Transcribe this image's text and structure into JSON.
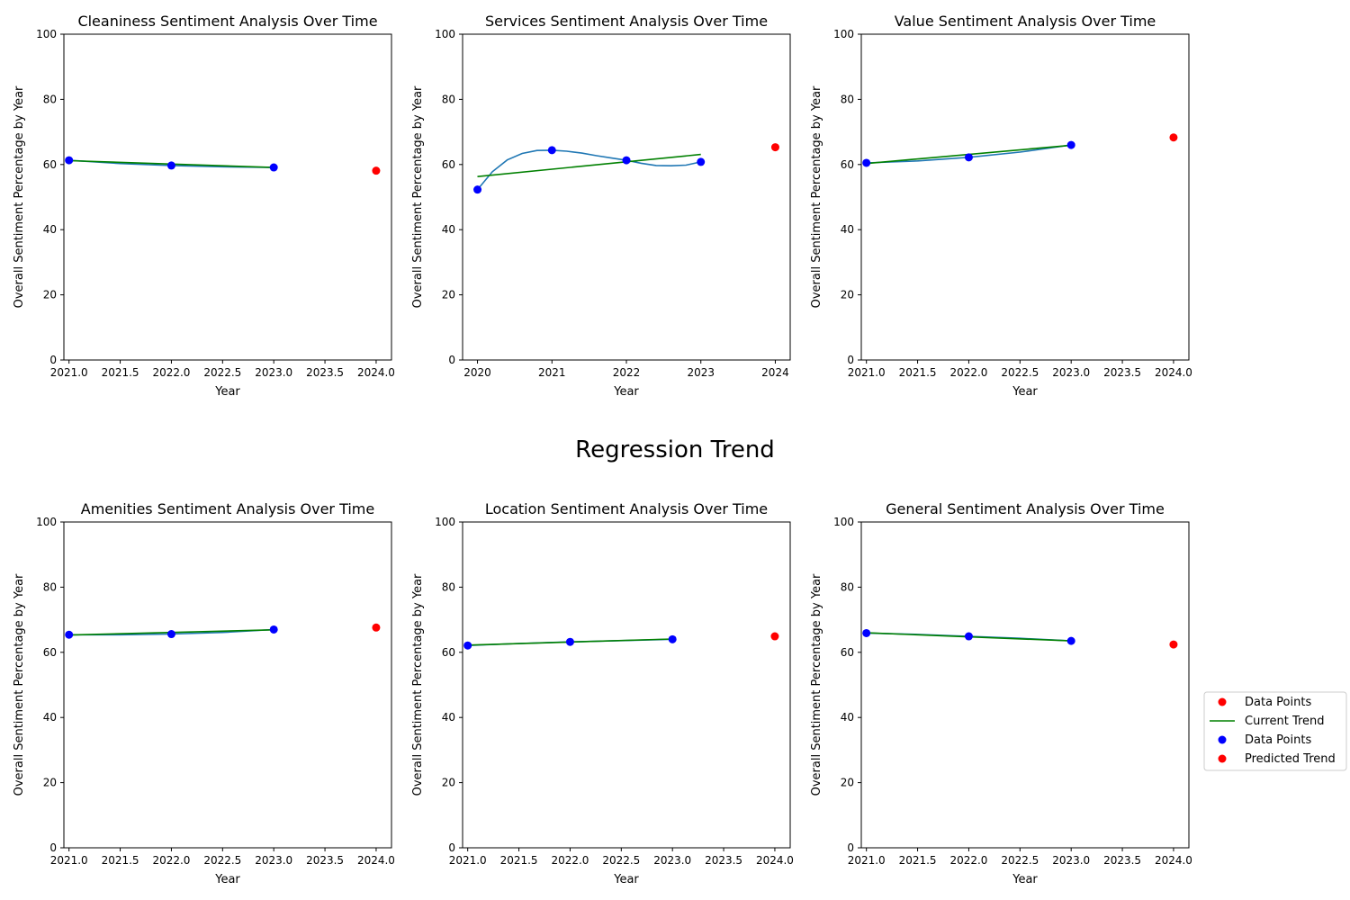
{
  "figure": {
    "suptitle": "Regression Trend"
  },
  "legend": {
    "placement": "right, below middle",
    "entries": [
      {
        "label": "Data Points",
        "marker": "dot",
        "color": "#ff0000"
      },
      {
        "label": "Current Trend",
        "marker": "line",
        "color": "#008000"
      },
      {
        "label": "Data Points",
        "marker": "dot",
        "color": "#0000ff"
      },
      {
        "label": "Predicted Trend",
        "marker": "dot",
        "color": "#ff0000"
      }
    ]
  },
  "colors": {
    "observed": "#0000ff",
    "predicted": "#ff0000",
    "trend": "#008000",
    "fit": "#1f77b4"
  },
  "chart_data": [
    {
      "type": "scatter",
      "title": "Cleaniness Sentiment Analysis Over Time",
      "xlabel": "Year",
      "ylabel": "Overall Sentiment Percentage by Year",
      "xlim": [
        2020.95,
        2024.15
      ],
      "ylim": [
        0,
        100
      ],
      "xticks": [
        2021.0,
        2021.5,
        2022.0,
        2022.5,
        2023.0,
        2023.5,
        2024.0
      ],
      "xtick_labels": [
        "2021.0",
        "2021.5",
        "2022.0",
        "2022.5",
        "2023.0",
        "2023.5",
        "2024.0"
      ],
      "yticks": [
        0,
        20,
        40,
        60,
        80,
        100
      ],
      "ytick_labels": [
        "0",
        "20",
        "40",
        "60",
        "80",
        "100"
      ],
      "observed": {
        "x": [
          2021,
          2022,
          2023
        ],
        "y": [
          61.3,
          59.7,
          59.1
        ]
      },
      "predicted": {
        "x": [
          2024
        ],
        "y": [
          58.1
        ]
      },
      "trend": {
        "x": [
          2021,
          2023
        ],
        "y": [
          61.2,
          59.1
        ]
      },
      "fit": {
        "x": [
          2021,
          2021.5,
          2022,
          2022.5,
          2023
        ],
        "y": [
          61.3,
          60.3,
          59.7,
          59.3,
          59.1
        ]
      }
    },
    {
      "type": "scatter",
      "title": "Services Sentiment Analysis Over Time",
      "xlabel": "Year",
      "ylabel": "Overall Sentiment Percentage by Year",
      "xlim": [
        2019.8,
        2024.2
      ],
      "ylim": [
        0,
        100
      ],
      "xticks": [
        2020,
        2021,
        2022,
        2023,
        2024
      ],
      "xtick_labels": [
        "2020",
        "2021",
        "2022",
        "2023",
        "2024"
      ],
      "yticks": [
        0,
        20,
        40,
        60,
        80,
        100
      ],
      "ytick_labels": [
        "0",
        "20",
        "40",
        "60",
        "80",
        "100"
      ],
      "observed": {
        "x": [
          2020,
          2021,
          2022,
          2023
        ],
        "y": [
          52.3,
          64.4,
          61.3,
          60.8
        ]
      },
      "predicted": {
        "x": [
          2024
        ],
        "y": [
          65.3
        ]
      },
      "trend": {
        "x": [
          2020,
          2023
        ],
        "y": [
          56.3,
          63.1
        ]
      },
      "fit": {
        "x": [
          2020,
          2020.2,
          2020.4,
          2020.6,
          2020.8,
          2021,
          2021.2,
          2021.4,
          2021.6,
          2021.8,
          2022,
          2022.2,
          2022.4,
          2022.6,
          2022.8,
          2023
        ],
        "y": [
          52.3,
          57.8,
          61.4,
          63.4,
          64.3,
          64.4,
          64.1,
          63.5,
          62.7,
          62.0,
          61.3,
          60.4,
          59.7,
          59.6,
          59.8,
          60.8
        ]
      }
    },
    {
      "type": "scatter",
      "title": "Value Sentiment Analysis Over Time",
      "xlabel": "Year",
      "ylabel": "Overall Sentiment Percentage by Year",
      "xlim": [
        2020.95,
        2024.15
      ],
      "ylim": [
        0,
        100
      ],
      "xticks": [
        2021.0,
        2021.5,
        2022.0,
        2022.5,
        2023.0,
        2023.5,
        2024.0
      ],
      "xtick_labels": [
        "2021.0",
        "2021.5",
        "2022.0",
        "2022.5",
        "2023.0",
        "2023.5",
        "2024.0"
      ],
      "yticks": [
        0,
        20,
        40,
        60,
        80,
        100
      ],
      "ytick_labels": [
        "0",
        "20",
        "40",
        "60",
        "80",
        "100"
      ],
      "observed": {
        "x": [
          2021,
          2022,
          2023
        ],
        "y": [
          60.5,
          62.2,
          66.0
        ]
      },
      "predicted": {
        "x": [
          2024
        ],
        "y": [
          68.3
        ]
      },
      "trend": {
        "x": [
          2021,
          2023
        ],
        "y": [
          60.3,
          65.9
        ]
      },
      "fit": {
        "x": [
          2021,
          2021.5,
          2022,
          2022.5,
          2023
        ],
        "y": [
          60.5,
          61.1,
          62.2,
          63.8,
          66.0
        ]
      }
    },
    {
      "type": "scatter",
      "title": "Amenities Sentiment Analysis Over Time",
      "xlabel": "Year",
      "ylabel": "Overall Sentiment Percentage by Year",
      "xlim": [
        2020.95,
        2024.15
      ],
      "ylim": [
        0,
        100
      ],
      "xticks": [
        2021.0,
        2021.5,
        2022.0,
        2022.5,
        2023.0,
        2023.5,
        2024.0
      ],
      "xtick_labels": [
        "2021.0",
        "2021.5",
        "2022.0",
        "2022.5",
        "2023.0",
        "2023.5",
        "2024.0"
      ],
      "yticks": [
        0,
        20,
        40,
        60,
        80,
        100
      ],
      "ytick_labels": [
        "0",
        "20",
        "40",
        "60",
        "80",
        "100"
      ],
      "observed": {
        "x": [
          2021,
          2022,
          2023
        ],
        "y": [
          65.4,
          65.6,
          67.0
        ]
      },
      "predicted": {
        "x": [
          2024
        ],
        "y": [
          67.6
        ]
      },
      "trend": {
        "x": [
          2021,
          2023
        ],
        "y": [
          65.3,
          66.9
        ]
      },
      "fit": {
        "x": [
          2021,
          2021.5,
          2022,
          2022.5,
          2023
        ],
        "y": [
          65.4,
          65.4,
          65.6,
          66.1,
          67.0
        ]
      }
    },
    {
      "type": "scatter",
      "title": "Location Sentiment Analysis Over Time",
      "xlabel": "Year",
      "ylabel": "Overall Sentiment Percentage by Year",
      "xlim": [
        2020.95,
        2024.15
      ],
      "ylim": [
        0,
        100
      ],
      "xticks": [
        2021.0,
        2021.5,
        2022.0,
        2022.5,
        2023.0,
        2023.5,
        2024.0
      ],
      "xtick_labels": [
        "2021.0",
        "2021.5",
        "2022.0",
        "2022.5",
        "2023.0",
        "2023.5",
        "2024.0"
      ],
      "yticks": [
        0,
        20,
        40,
        60,
        80,
        100
      ],
      "ytick_labels": [
        "0",
        "20",
        "40",
        "60",
        "80",
        "100"
      ],
      "observed": {
        "x": [
          2021,
          2022,
          2023
        ],
        "y": [
          62.1,
          63.2,
          64.0
        ]
      },
      "predicted": {
        "x": [
          2024
        ],
        "y": [
          64.9
        ]
      },
      "trend": {
        "x": [
          2021,
          2023
        ],
        "y": [
          62.2,
          64.1
        ]
      },
      "fit": {
        "x": [
          2021,
          2021.5,
          2022,
          2022.5,
          2023
        ],
        "y": [
          62.1,
          62.7,
          63.2,
          63.6,
          64.0
        ]
      }
    },
    {
      "type": "scatter",
      "title": "General Sentiment Analysis Over Time",
      "xlabel": "Year",
      "ylabel": "Overall Sentiment Percentage by Year",
      "xlim": [
        2020.95,
        2024.15
      ],
      "ylim": [
        0,
        100
      ],
      "xticks": [
        2021.0,
        2021.5,
        2022.0,
        2022.5,
        2023.0,
        2023.5,
        2024.0
      ],
      "xtick_labels": [
        "2021.0",
        "2021.5",
        "2022.0",
        "2022.5",
        "2023.0",
        "2023.5",
        "2024.0"
      ],
      "yticks": [
        0,
        20,
        40,
        60,
        80,
        100
      ],
      "ytick_labels": [
        "0",
        "20",
        "40",
        "60",
        "80",
        "100"
      ],
      "observed": {
        "x": [
          2021,
          2022,
          2023
        ],
        "y": [
          65.9,
          64.9,
          63.5
        ]
      },
      "predicted": {
        "x": [
          2024
        ],
        "y": [
          62.4
        ]
      },
      "trend": {
        "x": [
          2021,
          2023
        ],
        "y": [
          66.0,
          63.5
        ]
      },
      "fit": {
        "x": [
          2021,
          2021.5,
          2022,
          2022.5,
          2023
        ],
        "y": [
          65.9,
          65.5,
          64.9,
          64.3,
          63.5
        ]
      }
    }
  ]
}
